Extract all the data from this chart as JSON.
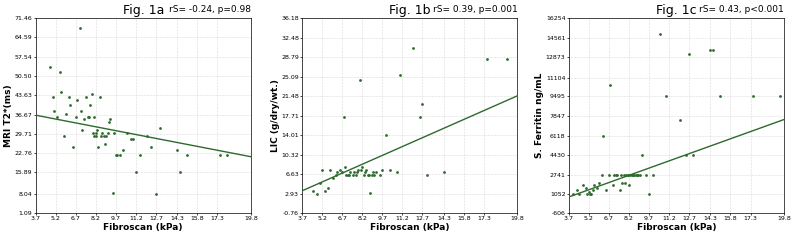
{
  "panels": [
    {
      "title": "Fig. 1a",
      "annotation": "rS= -0.24, p=0.98",
      "xlabel": "Fibroscan (kPa)",
      "ylabel": "MRI T2*(ms)",
      "xlim": [
        3.7,
        19.8
      ],
      "ylim": [
        1.09,
        71.46
      ],
      "xticks": [
        3.7,
        5.2,
        6.7,
        8.2,
        9.7,
        11.2,
        12.7,
        14.3,
        15.8,
        17.3,
        19.8
      ],
      "yticks": [
        1.09,
        8.04,
        15.89,
        22.76,
        29.71,
        36.67,
        43.63,
        50.5,
        57.54,
        64.59,
        71.46
      ],
      "ytick_labels": [
        "1.09",
        "8.04",
        "15.89",
        "22.76",
        "29.71",
        "36.67",
        "43.63",
        "50.50",
        "57.54",
        "64.59",
        "71.46"
      ],
      "trend_x": [
        3.7,
        19.8
      ],
      "trend_y": [
        36.5,
        21.5
      ],
      "scatter_x": [
        4.8,
        5.0,
        5.1,
        5.3,
        5.5,
        5.6,
        5.8,
        6.0,
        6.2,
        6.3,
        6.5,
        6.7,
        6.8,
        7.0,
        7.1,
        7.2,
        7.3,
        7.5,
        7.6,
        7.7,
        7.8,
        7.9,
        8.0,
        8.1,
        8.1,
        8.2,
        8.2,
        8.3,
        8.4,
        8.5,
        8.6,
        8.7,
        8.8,
        8.9,
        9.0,
        9.1,
        9.2,
        9.3,
        9.5,
        9.6,
        9.7,
        9.8,
        10.0,
        10.2,
        10.5,
        10.8,
        11.0,
        11.2,
        11.5,
        12.0,
        12.3,
        12.7,
        13.0,
        14.3,
        14.5,
        15.0,
        17.5,
        18.0
      ],
      "scatter_y": [
        54.0,
        43.0,
        38.0,
        36.0,
        52.0,
        45.0,
        29.0,
        37.0,
        43.0,
        40.0,
        25.0,
        36.0,
        42.0,
        68.0,
        38.0,
        31.0,
        35.0,
        43.0,
        36.0,
        36.0,
        40.0,
        44.0,
        30.0,
        29.0,
        36.0,
        30.0,
        29.0,
        31.0,
        25.0,
        43.0,
        29.0,
        30.0,
        29.0,
        26.0,
        29.0,
        30.0,
        34.0,
        35.0,
        8.5,
        30.0,
        22.0,
        22.0,
        22.0,
        24.0,
        30.0,
        28.0,
        28.0,
        16.0,
        22.0,
        29.0,
        25.0,
        8.0,
        32.0,
        24.0,
        16.0,
        22.0,
        22.0,
        22.0
      ]
    },
    {
      "title": "Fig. 1b",
      "annotation": "rS= 0.39, p=0.001",
      "xlabel": "Fibroscan (kPa)",
      "ylabel": "LIC (g/dry/wt.)",
      "xlim": [
        3.7,
        19.8
      ],
      "ylim": [
        -0.76,
        36.18
      ],
      "xticks": [
        3.7,
        5.2,
        6.7,
        8.2,
        9.7,
        11.2,
        12.7,
        14.3,
        15.8,
        17.3,
        19.8
      ],
      "yticks": [
        -0.76,
        2.93,
        6.63,
        10.32,
        14.01,
        17.71,
        21.48,
        25.09,
        28.79,
        32.48,
        36.18
      ],
      "ytick_labels": [
        "-0.76",
        "2.93",
        "6.63",
        "10.32",
        "14.01",
        "17.71",
        "21.48",
        "25.09",
        "28.79",
        "32.48",
        "36.18"
      ],
      "trend_x": [
        3.7,
        19.8
      ],
      "trend_y": [
        3.5,
        21.5
      ],
      "scatter_x": [
        4.5,
        4.8,
        5.0,
        5.2,
        5.4,
        5.6,
        5.8,
        6.0,
        6.2,
        6.3,
        6.5,
        6.7,
        6.8,
        6.9,
        7.0,
        7.1,
        7.2,
        7.3,
        7.5,
        7.6,
        7.7,
        7.8,
        7.9,
        8.0,
        8.1,
        8.2,
        8.3,
        8.4,
        8.5,
        8.6,
        8.7,
        8.8,
        8.9,
        9.0,
        9.1,
        9.2,
        9.5,
        9.7,
        10.0,
        10.3,
        10.8,
        11.0,
        12.0,
        12.5,
        12.7,
        13.0,
        14.3,
        17.5,
        19.0
      ],
      "scatter_y": [
        3.5,
        2.9,
        5.0,
        7.5,
        3.5,
        4.0,
        7.5,
        6.0,
        6.5,
        7.0,
        7.5,
        7.0,
        17.5,
        8.0,
        6.5,
        6.5,
        6.5,
        7.0,
        6.5,
        7.0,
        6.5,
        7.0,
        7.5,
        24.5,
        7.5,
        8.0,
        6.5,
        7.0,
        7.5,
        6.5,
        6.5,
        3.0,
        6.5,
        7.0,
        6.5,
        7.0,
        6.5,
        7.5,
        14.0,
        7.5,
        7.0,
        25.5,
        30.5,
        17.5,
        20.0,
        6.5,
        7.0,
        28.5,
        28.5
      ]
    },
    {
      "title": "Fig. 1c",
      "annotation": "rS= 0.43, p<0.001",
      "xlabel": "Fibroscan (kPa)",
      "ylabel": "S. Ferritin ng/mL",
      "xlim": [
        3.7,
        19.8
      ],
      "ylim": [
        -606,
        16254
      ],
      "xticks": [
        3.7,
        5.2,
        6.7,
        8.2,
        9.7,
        11.2,
        12.7,
        14.3,
        15.8,
        17.3,
        19.8
      ],
      "yticks": [
        -606,
        1052,
        2741,
        4430,
        6118,
        7847,
        9495,
        11104,
        12873,
        14561,
        16254
      ],
      "ytick_labels": [
        "-606",
        "1052",
        "2741",
        "4430",
        "6118",
        "7847",
        "9495",
        "11104",
        "12873",
        "14561",
        "16254"
      ],
      "trend_x": [
        3.7,
        19.8
      ],
      "trend_y": [
        800,
        7500
      ],
      "scatter_x": [
        4.0,
        4.3,
        4.5,
        4.8,
        5.0,
        5.1,
        5.2,
        5.3,
        5.4,
        5.5,
        5.6,
        5.8,
        6.0,
        6.2,
        6.3,
        6.5,
        6.7,
        6.8,
        7.0,
        7.1,
        7.2,
        7.3,
        7.5,
        7.6,
        7.7,
        7.8,
        7.9,
        8.0,
        8.1,
        8.1,
        8.2,
        8.3,
        8.4,
        8.5,
        8.6,
        8.7,
        8.8,
        8.9,
        9.0,
        9.2,
        9.5,
        9.7,
        10.0,
        10.5,
        11.0,
        12.0,
        12.5,
        12.7,
        13.0,
        14.3,
        14.5,
        15.0,
        17.5,
        19.5
      ],
      "scatter_y": [
        1052,
        1400,
        1052,
        1800,
        1600,
        1052,
        1200,
        1052,
        1052,
        1400,
        1800,
        1600,
        2000,
        2741,
        6118,
        1400,
        2741,
        10500,
        1800,
        2741,
        2741,
        2741,
        1400,
        2741,
        2000,
        2741,
        2000,
        2741,
        2741,
        2741,
        1800,
        2741,
        2741,
        2741,
        2741,
        2741,
        2741,
        2741,
        2741,
        4430,
        2741,
        1052,
        2741,
        14900,
        9495,
        7500,
        4430,
        13200,
        4430,
        13500,
        13500,
        9495,
        9495,
        9495
      ]
    }
  ],
  "dot_color": "#2d6a2d",
  "line_color": "#2d6a2d",
  "bg_color": "#ffffff",
  "grid_color": "#bbbbbb",
  "title_fontsize": 9,
  "annotation_fontsize": 6.5,
  "axis_label_fontsize": 6.5,
  "tick_fontsize": 4.5
}
